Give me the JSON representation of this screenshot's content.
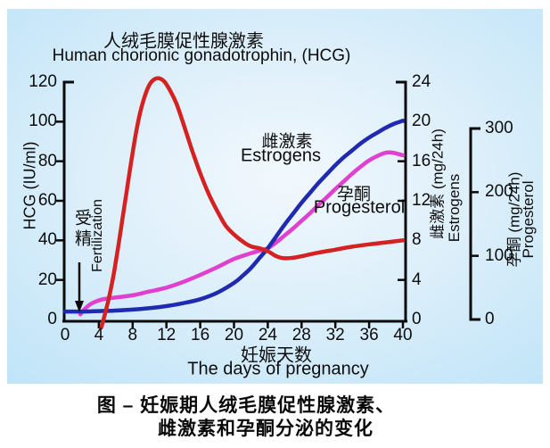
{
  "colors": {
    "hcg_line": "#d42222",
    "estrogens_line": "#1f2ab0",
    "progesterone_line": "#e040d0",
    "axis": "#0a0a0a",
    "panel_edge": "#a4daf6",
    "panel_center": "#f2f8fd",
    "text": "#0d0d0d"
  },
  "title": {
    "zh": "人绒毛膜促性腺激素",
    "en": "Human chorionic gonadotrophin,  (HCG)"
  },
  "y_axis_left": {
    "name": "HCG (IU/ml)",
    "ticks": [
      0,
      20,
      40,
      60,
      80,
      100,
      120
    ]
  },
  "y_axis_estrogens": {
    "name_zh": "雌激素 (mg/24h)",
    "name_en": "Estrogens",
    "ticks": [
      0,
      4,
      8,
      12,
      16,
      20,
      24
    ]
  },
  "y_axis_progesterone": {
    "name_zh": "孕酮 (mg/24h)",
    "name_en": "Progesterol",
    "ticks": [
      0,
      100,
      200,
      300
    ]
  },
  "x_axis": {
    "name_zh": "妊娠天数",
    "name_en": "The days of pregnancy",
    "ticks": [
      0,
      4,
      8,
      12,
      16,
      20,
      24,
      28,
      32,
      36,
      40
    ]
  },
  "annotations": {
    "fertilization_zh": "受精",
    "fertilization_en": "Fertilization",
    "estrogens_label_zh": "雌激素",
    "estrogens_label_en": "Estrogens",
    "progesterone_label_zh": "孕酮",
    "progesterone_label_en": "Progesterol"
  },
  "caption": {
    "line1": "图  –  妊娠期人绒毛膜促性腺激素、",
    "line2": "雌激素和孕酮分泌的变化"
  },
  "chart_data": {
    "type": "line",
    "title_zh": "人绒毛膜促性腺激素",
    "title_en": "Human chorionic gonadotrophin, (HCG)",
    "xlabel": "妊娠天数 / The days of pregnancy",
    "x_range": [
      0,
      40
    ],
    "grid": false,
    "series": [
      {
        "name": "HCG",
        "unit": "IU/ml",
        "axis": "left",
        "y_range": [
          0,
          120
        ],
        "color": "#d42222",
        "points": [
          [
            4.3,
            -4
          ],
          [
            4.8,
            4
          ],
          [
            5.3,
            13
          ],
          [
            5.8,
            24
          ],
          [
            6.3,
            37
          ],
          [
            6.8,
            51
          ],
          [
            7.3,
            65
          ],
          [
            7.8,
            79
          ],
          [
            8.3,
            92
          ],
          [
            8.8,
            103
          ],
          [
            9.3,
            111
          ],
          [
            9.8,
            117
          ],
          [
            10.3,
            120.5
          ],
          [
            11,
            122
          ],
          [
            11.7,
            120.5
          ],
          [
            12.4,
            116
          ],
          [
            13.2,
            109
          ],
          [
            14,
            99
          ],
          [
            15,
            86
          ],
          [
            16,
            74
          ],
          [
            17,
            63.5
          ],
          [
            18,
            55
          ],
          [
            19,
            47.5
          ],
          [
            20,
            43
          ],
          [
            21,
            39.5
          ],
          [
            22,
            37
          ],
          [
            23,
            36
          ],
          [
            24,
            34.5
          ],
          [
            25,
            32
          ],
          [
            25.8,
            31
          ],
          [
            27,
            31.2
          ],
          [
            28,
            32
          ],
          [
            30,
            33.8
          ],
          [
            32,
            35.3
          ],
          [
            34,
            36.8
          ],
          [
            36,
            38
          ],
          [
            38,
            39
          ],
          [
            40,
            40
          ]
        ]
      },
      {
        "name": "Estrogens 雌激素",
        "unit": "mg/24h",
        "axis": "right_estrogens",
        "y_range": [
          0,
          24
        ],
        "color": "#1f2ab0",
        "points": [
          [
            0,
            0.8
          ],
          [
            2,
            0.8
          ],
          [
            4,
            0.85
          ],
          [
            6,
            0.9
          ],
          [
            8,
            1.0
          ],
          [
            10,
            1.15
          ],
          [
            12,
            1.35
          ],
          [
            14,
            1.65
          ],
          [
            16,
            2.05
          ],
          [
            18,
            2.7
          ],
          [
            20,
            3.7
          ],
          [
            21,
            4.4
          ],
          [
            22,
            5.2
          ],
          [
            23,
            6.2
          ],
          [
            24,
            7.2
          ],
          [
            25,
            8.4
          ],
          [
            26,
            9.6
          ],
          [
            27,
            10.7
          ],
          [
            28,
            11.8
          ],
          [
            29,
            12.8
          ],
          [
            30,
            13.8
          ],
          [
            31,
            14.7
          ],
          [
            32,
            15.6
          ],
          [
            33,
            16.4
          ],
          [
            34,
            17.1
          ],
          [
            35,
            17.8
          ],
          [
            36,
            18.4
          ],
          [
            37,
            18.9
          ],
          [
            38,
            19.4
          ],
          [
            39,
            19.8
          ],
          [
            40,
            20.1
          ]
        ]
      },
      {
        "name": "Progesterol 孕酮",
        "unit": "mg/24h",
        "axis": "right_progesterone",
        "y_range": [
          0,
          300
        ],
        "color": "#e040d0",
        "points": [
          [
            1.8,
            8
          ],
          [
            2.3,
            16
          ],
          [
            3,
            24
          ],
          [
            4,
            30
          ],
          [
            5,
            33
          ],
          [
            6,
            34.5
          ],
          [
            8,
            38
          ],
          [
            10,
            44
          ],
          [
            12,
            50
          ],
          [
            14,
            59
          ],
          [
            16,
            70
          ],
          [
            18,
            82
          ],
          [
            20,
            95
          ],
          [
            22,
            104
          ],
          [
            23,
            108
          ],
          [
            24,
            112
          ],
          [
            25,
            121
          ],
          [
            26,
            132
          ],
          [
            27,
            143
          ],
          [
            28,
            155
          ],
          [
            29,
            167
          ],
          [
            30,
            180
          ],
          [
            31,
            192
          ],
          [
            32,
            205
          ],
          [
            33,
            217
          ],
          [
            34,
            229
          ],
          [
            35,
            240
          ],
          [
            36,
            250
          ],
          [
            37,
            257
          ],
          [
            38,
            262
          ],
          [
            38.8,
            262
          ],
          [
            40,
            258
          ]
        ]
      }
    ]
  }
}
